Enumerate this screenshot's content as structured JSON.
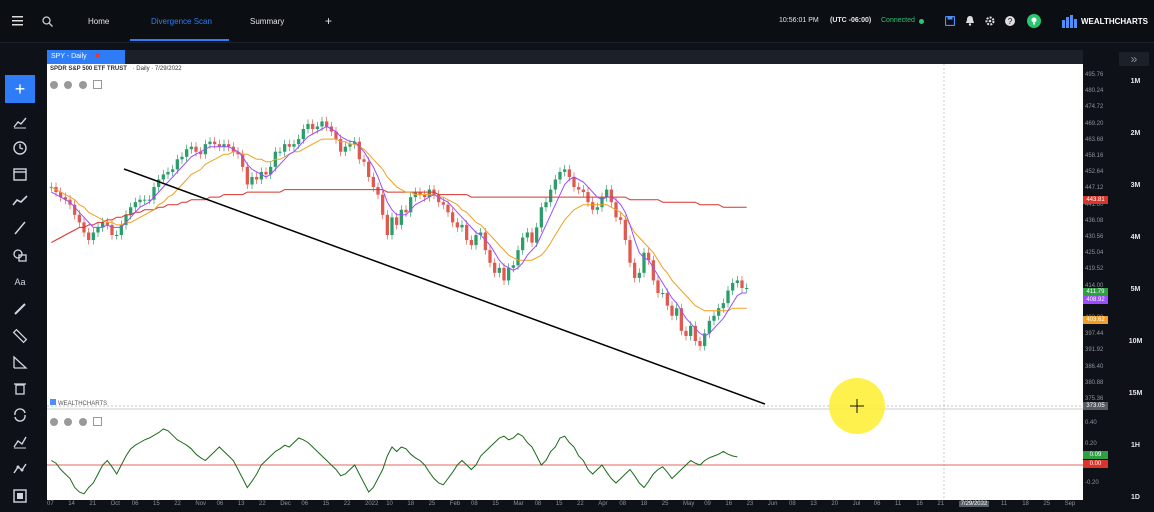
{
  "topbar": {
    "tabs": [
      {
        "label": "Home"
      },
      {
        "label": "Divergence Scan"
      },
      {
        "label": "Summary"
      }
    ],
    "add_tab": "+",
    "time": "10:56:01 PM",
    "timezone": "(UTC -06:00)",
    "status": "Connected",
    "brand": "WEALTHCHARTS",
    "status_color": "#28c76f",
    "accent": "#2f7df6"
  },
  "chart": {
    "tab_label": "SPY - Daily",
    "header": "SPDR S&P 500 ETF TRUST",
    "header_meta": "· Daily · 7/29/2022",
    "watermark": "WEALTHCHARTS"
  },
  "price_axis": {
    "labels": [
      "495.76",
      "480.24",
      "474.72",
      "469.20",
      "463.68",
      "458.16",
      "452.64",
      "447.12",
      "441.60",
      "436.08",
      "430.56",
      "425.04",
      "419.52",
      "414.00",
      "408.48",
      "403.00",
      "397.44",
      "391.92",
      "386.40",
      "380.88",
      "375.36"
    ],
    "badges": [
      {
        "value": "443.81",
        "color": "#d9342b"
      },
      {
        "value": "411.79",
        "color": "#2ea043"
      },
      {
        "value": "408.92",
        "color": "#9b4dff"
      },
      {
        "value": "403.62",
        "color": "#f0a020"
      },
      {
        "value": "373.05",
        "color": "#555b63"
      }
    ]
  },
  "osc_axis": {
    "labels": [
      "0.40",
      "0.20",
      "-0.20"
    ],
    "badges": [
      {
        "value": "0.09",
        "color": "#2ea043"
      },
      {
        "value": "0.00",
        "color": "#d9342b"
      }
    ]
  },
  "xaxis": {
    "labels": [
      "07",
      "14",
      "21",
      "Oct",
      "06",
      "15",
      "22",
      "Nov",
      "06",
      "13",
      "22",
      "Dec",
      "06",
      "15",
      "22",
      "2022",
      "10",
      "18",
      "25",
      "Feb",
      "08",
      "15",
      "Mar",
      "08",
      "15",
      "22",
      "Apr",
      "08",
      "18",
      "25",
      "May",
      "09",
      "16",
      "23",
      "Jun",
      "08",
      "13",
      "20",
      "Jul",
      "06",
      "11",
      "16",
      "21",
      "7/29/2022",
      "04",
      "11",
      "18",
      "25",
      "Sep"
    ]
  },
  "timeframes": [
    "1M",
    "2M",
    "3M",
    "4M",
    "5M",
    "10M",
    "15M",
    "1H",
    "1D"
  ],
  "chart_data": {
    "type": "candlestick",
    "ticker": "SPY",
    "ylim": [
      370,
      496
    ],
    "close": [
      452,
      450,
      448,
      447,
      445,
      441,
      438,
      434,
      431,
      434,
      436,
      438,
      437,
      433,
      433,
      437,
      441,
      444,
      446,
      447,
      447,
      447,
      452,
      455,
      457,
      458,
      459,
      463,
      464,
      467,
      468,
      466,
      465,
      469,
      470,
      469,
      468,
      469,
      468,
      466,
      465,
      460,
      453,
      456,
      455,
      458,
      457,
      460,
      466,
      466,
      469,
      468,
      469,
      471,
      475,
      477,
      475,
      476,
      478,
      476,
      474,
      471,
      466,
      468,
      469,
      470,
      463,
      462,
      456,
      452,
      449,
      441,
      433,
      440,
      437,
      443,
      442,
      448,
      450,
      449,
      448,
      451,
      449,
      446,
      445,
      442,
      438,
      436,
      437,
      431,
      429,
      433,
      434,
      427,
      422,
      418,
      420,
      415,
      420,
      421,
      427,
      432,
      434,
      430,
      436,
      444,
      446,
      451,
      455,
      458,
      459,
      456,
      452,
      451,
      450,
      446,
      443,
      444,
      448,
      451,
      446,
      440,
      439,
      431,
      422,
      416,
      418,
      426,
      423,
      415,
      410,
      410,
      405,
      401,
      404,
      395,
      393,
      397,
      391,
      389,
      394,
      399,
      401,
      404,
      406,
      411,
      414,
      415,
      412,
      412
    ],
    "ma_purple": [
      450,
      449,
      448,
      447,
      446,
      444,
      442,
      440,
      438,
      436,
      436,
      436,
      437,
      436,
      436,
      436,
      438,
      440,
      442,
      444,
      445,
      446,
      448,
      450,
      452,
      454,
      456,
      458,
      460,
      462,
      464,
      465,
      466,
      467,
      468,
      468,
      468,
      468,
      468,
      467,
      466,
      464,
      461,
      459,
      458,
      457,
      456,
      457,
      459,
      461,
      463,
      465,
      466,
      468,
      470,
      472,
      473,
      474,
      475,
      476,
      475,
      474,
      472,
      471,
      470,
      470,
      468,
      466,
      463,
      460,
      456,
      451,
      446,
      443,
      441,
      441,
      441,
      443,
      445,
      446,
      447,
      448,
      449,
      448,
      447,
      446,
      444,
      442,
      440,
      438,
      436,
      434,
      433,
      431,
      429,
      426,
      423,
      421,
      420,
      419,
      420,
      422,
      425,
      427,
      429,
      433,
      437,
      441,
      445,
      449,
      453,
      455,
      456,
      455,
      454,
      452,
      450,
      448,
      447,
      448,
      448,
      447,
      445,
      442,
      437,
      431,
      426,
      424,
      423,
      420,
      417,
      414,
      411,
      408,
      406,
      403,
      400,
      398,
      396,
      394,
      393,
      394,
      396,
      398,
      400,
      403,
      406,
      409,
      410,
      410
    ],
    "ma_orange": [
      452,
      451,
      450,
      449,
      448,
      447,
      445,
      444,
      442,
      441,
      440,
      439,
      438,
      438,
      437,
      437,
      438,
      438,
      439,
      440,
      441,
      442,
      443,
      445,
      446,
      448,
      449,
      451,
      453,
      455,
      457,
      458,
      459,
      461,
      462,
      463,
      464,
      465,
      465,
      466,
      466,
      465,
      465,
      464,
      463,
      463,
      462,
      462,
      463,
      463,
      464,
      465,
      466,
      466,
      467,
      468,
      469,
      470,
      471,
      471,
      471,
      471,
      470,
      470,
      469,
      469,
      468,
      467,
      465,
      463,
      461,
      459,
      456,
      454,
      452,
      451,
      450,
      450,
      449,
      449,
      449,
      449,
      449,
      448,
      448,
      447,
      446,
      445,
      443,
      442,
      440,
      438,
      437,
      435,
      433,
      431,
      429,
      427,
      425,
      424,
      423,
      423,
      423,
      423,
      424,
      425,
      427,
      430,
      433,
      436,
      439,
      441,
      443,
      444,
      445,
      445,
      445,
      445,
      445,
      445,
      444,
      443,
      442,
      440,
      437,
      434,
      432,
      430,
      428,
      426,
      423,
      420,
      418,
      415,
      413,
      411,
      409,
      407,
      405,
      404,
      403,
      403,
      403,
      403,
      403,
      403,
      404,
      404,
      404,
      404
    ],
    "ma_red": [
      430,
      431,
      432,
      433,
      434,
      435,
      436,
      436,
      437,
      437,
      438,
      438,
      439,
      439,
      440,
      440,
      441,
      441,
      442,
      442,
      443,
      443,
      443,
      444,
      444,
      445,
      445,
      445,
      446,
      446,
      447,
      447,
      447,
      447,
      448,
      448,
      448,
      449,
      449,
      449,
      449,
      449,
      450,
      450,
      450,
      450,
      450,
      450,
      450,
      450,
      451,
      451,
      451,
      451,
      451,
      451,
      451,
      451,
      451,
      451,
      451,
      451,
      451,
      451,
      451,
      451,
      451,
      451,
      451,
      451,
      451,
      451,
      450,
      450,
      450,
      450,
      450,
      450,
      450,
      450,
      450,
      450,
      450,
      449,
      449,
      449,
      449,
      449,
      449,
      449,
      448,
      448,
      448,
      448,
      448,
      448,
      448,
      448,
      448,
      448,
      448,
      448,
      448,
      448,
      448,
      448,
      448,
      448,
      448,
      448,
      448,
      448,
      448,
      448,
      448,
      448,
      448,
      448,
      448,
      448,
      448,
      448,
      448,
      448,
      447,
      447,
      447,
      447,
      447,
      447,
      447,
      446,
      446,
      446,
      446,
      446,
      446,
      446,
      446,
      445,
      445,
      445,
      445,
      445,
      444,
      444,
      444,
      444,
      444,
      444
    ],
    "oscillator": [
      0.05,
      0.02,
      -0.05,
      -0.1,
      -0.15,
      -0.25,
      -0.3,
      -0.32,
      -0.25,
      -0.2,
      -0.1,
      0.0,
      0.05,
      -0.02,
      -0.1,
      0.0,
      0.1,
      0.18,
      0.22,
      0.25,
      0.28,
      0.3,
      0.33,
      0.36,
      0.4,
      0.38,
      0.33,
      0.28,
      0.25,
      0.22,
      0.18,
      0.12,
      0.08,
      0.05,
      0.1,
      0.15,
      0.2,
      0.15,
      0.1,
      0.05,
      -0.05,
      -0.15,
      -0.25,
      -0.18,
      -0.1,
      0.0,
      0.05,
      0.1,
      0.15,
      0.18,
      0.22,
      0.2,
      0.25,
      0.3,
      0.28,
      0.25,
      0.2,
      0.15,
      0.1,
      0.05,
      0.0,
      -0.05,
      -0.12,
      -0.1,
      -0.05,
      0.0,
      -0.1,
      -0.2,
      -0.3,
      -0.25,
      -0.15,
      -0.05,
      0.1,
      0.2,
      0.15,
      0.2,
      0.18,
      0.12,
      0.08,
      0.05,
      0.0,
      -0.08,
      -0.15,
      -0.2,
      -0.22,
      -0.15,
      -0.08,
      0.0,
      0.05,
      0.0,
      -0.05,
      0.0,
      0.1,
      0.15,
      0.2,
      0.25,
      0.3,
      0.32,
      0.28,
      0.3,
      0.35,
      0.32,
      0.25,
      0.2,
      0.1,
      0.0,
      0.05,
      0.15,
      0.2,
      0.3,
      0.32,
      0.25,
      0.2,
      0.1,
      0.05,
      -0.05,
      -0.1,
      -0.05,
      0.0,
      -0.08,
      -0.15,
      -0.2,
      -0.15,
      -0.1,
      -0.05,
      -0.12,
      -0.2,
      -0.25,
      -0.18,
      -0.1,
      -0.05,
      -0.02,
      -0.08,
      -0.15,
      -0.1,
      -0.05,
      0.0,
      0.05,
      0.02,
      0.0,
      0.05,
      0.08,
      0.1,
      0.12,
      0.15,
      0.12,
      0.1,
      0.09
    ],
    "trendline": [
      [
        425.0,
        0
      ],
      [
        373.5,
        1
      ]
    ]
  }
}
